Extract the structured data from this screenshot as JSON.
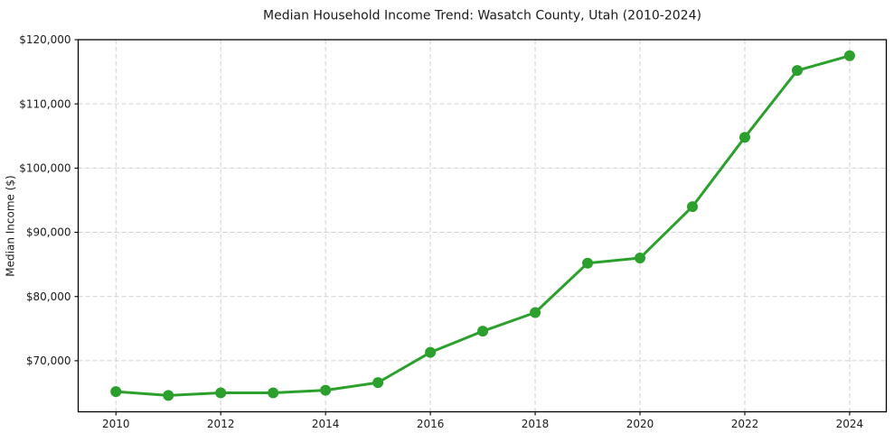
{
  "chart_data": {
    "type": "line",
    "title": "Median Household Income Trend: Wasatch County, Utah (2010-2024)",
    "xlabel": "",
    "ylabel": "Median Income ($)",
    "x": [
      2010,
      2011,
      2012,
      2013,
      2014,
      2015,
      2016,
      2017,
      2018,
      2019,
      2020,
      2021,
      2022,
      2023,
      2024
    ],
    "series": [
      {
        "values": [
          65200,
          64600,
          65000,
          65000,
          65400,
          66600,
          71300,
          74600,
          77500,
          85200,
          86000,
          94000,
          104800,
          115200,
          117500
        ],
        "color": "#2ca02c"
      }
    ],
    "xlim": [
      2009.28,
      2024.7
    ],
    "ylim": [
      62050,
      120000
    ],
    "xticks": {
      "values": [
        2010,
        2012,
        2014,
        2016,
        2018,
        2020,
        2022,
        2024
      ],
      "labels": [
        "2010",
        "2012",
        "2014",
        "2016",
        "2018",
        "2020",
        "2022",
        "2024"
      ]
    },
    "yticks": {
      "values": [
        70000,
        80000,
        90000,
        100000,
        110000,
        120000
      ],
      "labels": [
        "$70,000",
        "$80,000",
        "$90,000",
        "$100,000",
        "$110,000",
        "$120,000"
      ]
    },
    "grid": {
      "show": true,
      "line_style": "dashed",
      "color": "#cccccc"
    },
    "legend": {
      "show": false
    },
    "colors": {
      "background": "#ffffff",
      "spine": "#000000",
      "text": "#1a1a1a",
      "grid": "#cccccc",
      "line": "#2ca02c"
    }
  }
}
